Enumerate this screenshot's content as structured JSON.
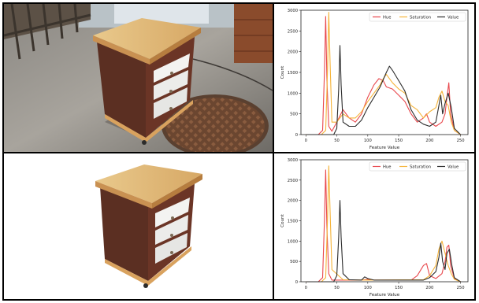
{
  "panels": [
    {
      "image": {
        "subject": "nightstand-photo",
        "background": "outdoor-pavement",
        "description": "Brown wooden nightstand with light wood top and white drawers standing on pavement next to a manhole cover"
      },
      "chart_data": {
        "type": "line",
        "xlabel": "Feature Value",
        "ylabel": "Count",
        "xlim": [
          -8,
          262
        ],
        "ylim": [
          0,
          3000
        ],
        "xticks": [
          0,
          50,
          100,
          150,
          200,
          250
        ],
        "yticks": [
          0,
          500,
          1000,
          1500,
          2000,
          2500,
          3000
        ],
        "legend_position": "top-right",
        "series": [
          {
            "name": "Hue",
            "color": "#e8474c",
            "x": [
              0,
              20,
              27,
              30,
              32,
              34,
              37,
              42,
              50,
              60,
              70,
              80,
              90,
              100,
              110,
              118,
              125,
              130,
              140,
              150,
              160,
              170,
              180,
              190,
              195,
              200,
              210,
              220,
              225,
              228,
              231,
              234,
              240,
              250
            ],
            "y": [
              0,
              0,
              100,
              1500,
              2850,
              1300,
              200,
              80,
              300,
              600,
              400,
              300,
              500,
              900,
              1200,
              1350,
              1300,
              1150,
              1100,
              950,
              800,
              500,
              300,
              400,
              500,
              300,
              200,
              300,
              500,
              900,
              1250,
              500,
              100,
              0
            ]
          },
          {
            "name": "Saturation",
            "color": "#f5b43a",
            "x": [
              0,
              25,
              32,
              35,
              37,
              39,
              42,
              50,
              60,
              70,
              80,
              90,
              100,
              110,
              120,
              125,
              130,
              140,
              150,
              160,
              170,
              180,
              190,
              200,
              210,
              215,
              220,
              225,
              230,
              235,
              240,
              250
            ],
            "y": [
              0,
              0,
              100,
              1600,
              2950,
              1800,
              300,
              300,
              500,
              400,
              400,
              550,
              800,
              1000,
              1200,
              1350,
              1450,
              1250,
              1100,
              1000,
              700,
              600,
              400,
              550,
              650,
              900,
              1050,
              800,
              700,
              300,
              100,
              0
            ]
          },
          {
            "name": "Value",
            "color": "#2c2c2c",
            "x": [
              0,
              45,
              50,
              53,
              55,
              57,
              60,
              70,
              80,
              90,
              100,
              110,
              120,
              130,
              135,
              140,
              150,
              160,
              170,
              180,
              190,
              200,
              210,
              215,
              218,
              221,
              225,
              230,
              235,
              240,
              250
            ],
            "y": [
              0,
              0,
              150,
              1100,
              2150,
              1200,
              300,
              200,
              200,
              350,
              650,
              900,
              1150,
              1500,
              1650,
              1550,
              1300,
              1050,
              600,
              350,
              250,
              200,
              300,
              700,
              950,
              500,
              750,
              1000,
              650,
              150,
              0
            ]
          }
        ]
      }
    },
    {
      "image": {
        "subject": "nightstand-render",
        "background": "white",
        "description": "Same nightstand isolated on a white background"
      },
      "chart_data": {
        "type": "line",
        "xlabel": "Feature Value",
        "ylabel": "Count",
        "xlim": [
          -8,
          262
        ],
        "ylim": [
          0,
          3000
        ],
        "xticks": [
          0,
          50,
          100,
          150,
          200,
          250
        ],
        "yticks": [
          0,
          500,
          1000,
          1500,
          2000,
          2500,
          3000
        ],
        "legend_position": "top-right",
        "series": [
          {
            "name": "Hue",
            "color": "#e8474c",
            "x": [
              0,
              20,
              27,
              30,
              32,
              34,
              37,
              42,
              60,
              90,
              100,
              110,
              170,
              180,
              190,
              195,
              200,
              210,
              220,
              225,
              228,
              231,
              234,
              240,
              250
            ],
            "y": [
              0,
              0,
              100,
              1500,
              2750,
              1300,
              200,
              40,
              40,
              40,
              60,
              40,
              40,
              150,
              400,
              450,
              150,
              80,
              200,
              500,
              850,
              900,
              400,
              80,
              0
            ]
          },
          {
            "name": "Saturation",
            "color": "#f5b43a",
            "x": [
              0,
              25,
              32,
              35,
              37,
              39,
              42,
              60,
              100,
              190,
              200,
              210,
              215,
              220,
              225,
              230,
              235,
              240,
              250
            ],
            "y": [
              0,
              0,
              100,
              1600,
              2850,
              1800,
              300,
              50,
              40,
              50,
              150,
              400,
              800,
              1000,
              700,
              400,
              200,
              60,
              0
            ]
          },
          {
            "name": "Value",
            "color": "#2c2c2c",
            "x": [
              0,
              45,
              50,
              53,
              55,
              57,
              60,
              70,
              90,
              95,
              100,
              110,
              190,
              200,
              210,
              215,
              218,
              221,
              225,
              228,
              232,
              236,
              240,
              250
            ],
            "y": [
              0,
              0,
              150,
              1100,
              2000,
              1100,
              200,
              50,
              40,
              120,
              80,
              40,
              40,
              100,
              250,
              600,
              950,
              500,
              300,
              700,
              800,
              400,
              100,
              0
            ]
          }
        ]
      }
    }
  ]
}
